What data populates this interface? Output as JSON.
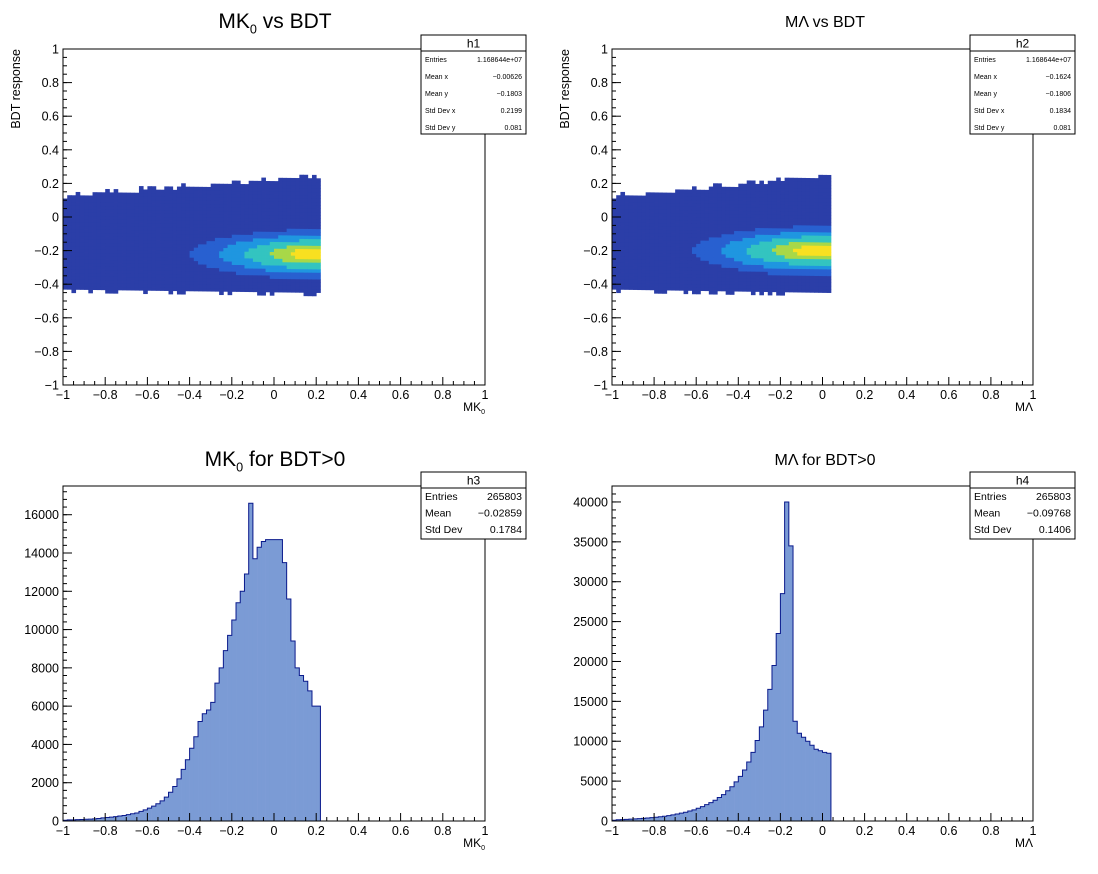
{
  "chart_data": [
    {
      "id": "h1",
      "type": "heatmap",
      "title_main": "MK",
      "title_sub": "0",
      "title_rest": " vs BDT",
      "xlabel_main": "MK",
      "xlabel_sub": "0",
      "ylabel": "BDT response",
      "xlim": [
        -1,
        1
      ],
      "ylim": [
        -1,
        1
      ],
      "xticks": [
        "−1",
        "−0.8",
        "−0.6",
        "−0.4",
        "−0.2",
        "0",
        "0.2",
        "0.4",
        "0.6",
        "0.8",
        "1"
      ],
      "yticks": [
        "−1",
        "−0.8",
        "−0.6",
        "−0.4",
        "−0.2",
        "0",
        "0.2",
        "0.4",
        "0.6",
        "0.8",
        "1"
      ],
      "stats": {
        "name": "h1",
        "rows": [
          {
            "label": "Entries",
            "value": "1.168644e+07"
          },
          {
            "label": "Mean x",
            "value": "−0.00626"
          },
          {
            "label": "Mean y",
            "value": "−0.1803"
          },
          {
            "label": "Std Dev x",
            "value": "0.2199"
          },
          {
            "label": "Std Dev y",
            "value": "0.081"
          }
        ]
      },
      "x_range": [
        -1,
        0.22
      ],
      "y_lower_left": -0.43,
      "y_lower_right": -0.45,
      "y_upper_left": 0.11,
      "y_upper_right": 0.23,
      "peak": {
        "x": 0.22,
        "y": -0.22
      },
      "colors": [
        "#2b3ea8",
        "#2860d0",
        "#1f96e0",
        "#33c4c0",
        "#a8d848",
        "#f8e020"
      ]
    },
    {
      "id": "h2",
      "type": "heatmap",
      "title_main": "MΛ vs BDT",
      "xlabel_main": "MΛ",
      "ylabel": "BDT response",
      "xlim": [
        -1,
        1
      ],
      "ylim": [
        -1,
        1
      ],
      "xticks": [
        "−1",
        "−0.8",
        "−0.6",
        "−0.4",
        "−0.2",
        "0",
        "0.2",
        "0.4",
        "0.6",
        "0.8",
        "1"
      ],
      "yticks": [
        "−1",
        "−0.8",
        "−0.6",
        "−0.4",
        "−0.2",
        "0",
        "0.2",
        "0.4",
        "0.6",
        "0.8",
        "1"
      ],
      "stats": {
        "name": "h2",
        "rows": [
          {
            "label": "Entries",
            "value": "1.168644e+07"
          },
          {
            "label": "Mean x",
            "value": "−0.1624"
          },
          {
            "label": "Mean y",
            "value": "−0.1806"
          },
          {
            "label": "Std Dev x",
            "value": "0.1834"
          },
          {
            "label": "Std Dev y",
            "value": "0.081"
          }
        ]
      },
      "x_range": [
        -1,
        0.03
      ],
      "y_lower_left": -0.43,
      "y_lower_right": -0.45,
      "y_upper_left": 0.11,
      "y_upper_right": 0.23,
      "peak": {
        "x": 0.0,
        "y": -0.2
      },
      "colors": [
        "#2b3ea8",
        "#2860d0",
        "#1f96e0",
        "#33c4c0",
        "#a8d848",
        "#f8e020"
      ]
    },
    {
      "id": "h3",
      "type": "bar",
      "title_main": "MK",
      "title_sub": "0",
      "title_rest": " for BDT>0",
      "xlabel_main": "MK",
      "xlabel_sub": "0",
      "xlim": [
        -1,
        1
      ],
      "ylim": [
        0,
        17500
      ],
      "xticks": [
        "−1",
        "−0.8",
        "−0.6",
        "−0.4",
        "−0.2",
        "0",
        "0.2",
        "0.4",
        "0.6",
        "0.8",
        "1"
      ],
      "yticks": [
        "0",
        "2000",
        "4000",
        "6000",
        "8000",
        "10000",
        "12000",
        "14000",
        "16000"
      ],
      "ytick_values": [
        0,
        2000,
        4000,
        6000,
        8000,
        10000,
        12000,
        14000,
        16000
      ],
      "stats": {
        "name": "h3",
        "rows": [
          {
            "label": "Entries",
            "value": "265803"
          },
          {
            "label": "Mean",
            "value": "−0.02859"
          },
          {
            "label": "Std Dev",
            "value": "0.1784"
          }
        ]
      },
      "bin_start": -1,
      "bin_width": 0.02,
      "values": [
        40,
        60,
        60,
        70,
        80,
        90,
        100,
        110,
        130,
        160,
        180,
        200,
        230,
        260,
        290,
        330,
        380,
        420,
        500,
        580,
        670,
        780,
        900,
        1050,
        1250,
        1500,
        1800,
        2200,
        2700,
        3200,
        3800,
        4400,
        5200,
        5600,
        5800,
        6200,
        7200,
        8000,
        8900,
        9700,
        10500,
        11400,
        12000,
        12900,
        16600,
        13700,
        14300,
        14600,
        14700,
        14700,
        14700,
        14700,
        13500,
        11600,
        9400,
        8000,
        7600,
        7300,
        6800,
        6000,
        6000
      ]
    },
    {
      "id": "h4",
      "type": "bar",
      "title_main": "MΛ for BDT>0",
      "xlabel_main": "MΛ",
      "xlim": [
        -1,
        1
      ],
      "ylim": [
        0,
        42000
      ],
      "xticks": [
        "−1",
        "−0.8",
        "−0.6",
        "−0.4",
        "−0.2",
        "0",
        "0.2",
        "0.4",
        "0.6",
        "0.8",
        "1"
      ],
      "yticks": [
        "0",
        "5000",
        "10000",
        "15000",
        "20000",
        "25000",
        "30000",
        "35000",
        "40000"
      ],
      "ytick_values": [
        0,
        5000,
        10000,
        15000,
        20000,
        25000,
        30000,
        35000,
        40000
      ],
      "stats": {
        "name": "h4",
        "rows": [
          {
            "label": "Entries",
            "value": "265803"
          },
          {
            "label": "Mean",
            "value": "−0.09768"
          },
          {
            "label": "Std Dev",
            "value": "0.1406"
          }
        ]
      },
      "bin_start": -1,
      "bin_width": 0.02,
      "values": [
        100,
        150,
        170,
        200,
        230,
        260,
        300,
        330,
        370,
        420,
        470,
        530,
        600,
        680,
        770,
        870,
        980,
        1100,
        1250,
        1400,
        1600,
        1800,
        2050,
        2300,
        2600,
        2950,
        3300,
        3800,
        4300,
        4900,
        5600,
        6400,
        7400,
        8600,
        10100,
        11800,
        13900,
        16500,
        19500,
        23500,
        28500,
        40000,
        34500,
        12500,
        11000,
        10500,
        10000,
        9500,
        9000,
        8800,
        8600,
        8500
      ]
    }
  ]
}
